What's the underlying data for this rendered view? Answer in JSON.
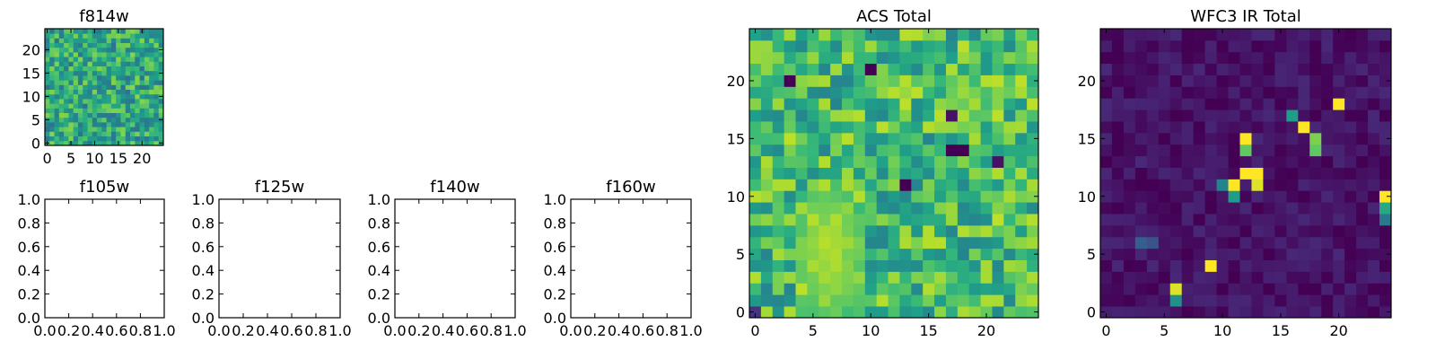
{
  "chart_data": [
    {
      "type": "heatmap",
      "title": "f814w",
      "xticks": [
        "0",
        "5",
        "10",
        "15",
        "20"
      ],
      "yticks": [
        "0",
        "5",
        "10",
        "15",
        "20"
      ],
      "xlim": [
        -0.5,
        24.5
      ],
      "ylim": [
        -0.5,
        24.5
      ],
      "grid": false,
      "colormap": "viridis",
      "matrix_size": [
        25,
        25
      ],
      "note_values": "pixel values not labeled; approximate normalized intensity (0-1) matching the ACS Total panel at reduced contrast"
    },
    {
      "type": "line",
      "title": "f105w",
      "xticks": [
        "0.0",
        "0.2",
        "0.4",
        "0.6",
        "0.8",
        "1.0"
      ],
      "yticks": [
        "0.0",
        "0.2",
        "0.4",
        "0.6",
        "0.8",
        "1.0"
      ],
      "xlim": [
        0,
        1
      ],
      "ylim": [
        0,
        1
      ],
      "series": []
    },
    {
      "type": "line",
      "title": "f125w",
      "xticks": [
        "0.0",
        "0.2",
        "0.4",
        "0.6",
        "0.8",
        "1.0"
      ],
      "yticks": [
        "0.0",
        "0.2",
        "0.4",
        "0.6",
        "0.8",
        "1.0"
      ],
      "xlim": [
        0,
        1
      ],
      "ylim": [
        0,
        1
      ],
      "series": []
    },
    {
      "type": "line",
      "title": "f140w",
      "xticks": [
        "0.0",
        "0.2",
        "0.4",
        "0.6",
        "0.8",
        "1.0"
      ],
      "yticks": [
        "0.0",
        "0.2",
        "0.4",
        "0.6",
        "0.8",
        "1.0"
      ],
      "xlim": [
        0,
        1
      ],
      "ylim": [
        0,
        1
      ],
      "series": []
    },
    {
      "type": "line",
      "title": "f160w",
      "xticks": [
        "0.0",
        "0.2",
        "0.4",
        "0.6",
        "0.8",
        "1.0"
      ],
      "yticks": [
        "0.0",
        "0.2",
        "0.4",
        "0.6",
        "0.8",
        "1.0"
      ],
      "xlim": [
        0,
        1
      ],
      "ylim": [
        0,
        1
      ],
      "series": []
    },
    {
      "type": "heatmap",
      "title": "ACS Total",
      "xticks": [
        "0",
        "5",
        "10",
        "15",
        "20"
      ],
      "yticks": [
        "0",
        "5",
        "10",
        "15",
        "20"
      ],
      "xlim": [
        -0.5,
        24.5
      ],
      "ylim": [
        -0.5,
        24.5
      ],
      "grid": false,
      "colormap": "viridis",
      "matrix_size": [
        25,
        25
      ],
      "background_level": 0.68,
      "features": [
        {
          "type": "bright_region",
          "x_range": [
            4,
            9
          ],
          "y_range": [
            0,
            10
          ],
          "value": 0.95
        },
        {
          "type": "dark_pixel",
          "x": 3,
          "y": 20,
          "value": 0.0
        },
        {
          "type": "dark_pixel",
          "x": 10,
          "y": 21,
          "value": 0.0
        },
        {
          "type": "dark_pixel",
          "x": 13,
          "y": 11,
          "value": 0.0
        },
        {
          "type": "dark_pixel",
          "x": 17,
          "y": 14,
          "value": 0.0
        },
        {
          "type": "dark_pixel",
          "x": 18,
          "y": 14,
          "value": 0.0
        },
        {
          "type": "dark_pixel",
          "x": 17,
          "y": 17,
          "value": 0.05
        },
        {
          "type": "dark_pixel",
          "x": 21,
          "y": 13,
          "value": 0.05
        },
        {
          "type": "dark_pixel",
          "x": 0,
          "y": 0,
          "value": 0.15
        }
      ]
    },
    {
      "type": "heatmap",
      "title": "WFC3 IR Total",
      "xticks": [
        "0",
        "5",
        "10",
        "15",
        "20"
      ],
      "yticks": [
        "0",
        "5",
        "10",
        "15",
        "20"
      ],
      "xlim": [
        -0.5,
        24.5
      ],
      "ylim": [
        -0.5,
        24.5
      ],
      "grid": false,
      "colormap": "viridis",
      "matrix_size": [
        25,
        25
      ],
      "background_level": 0.05,
      "features": [
        {
          "type": "bright_pixel",
          "x": 20,
          "y": 18,
          "value": 1.0
        },
        {
          "type": "bright_pixel",
          "x": 16,
          "y": 17,
          "value": 0.55
        },
        {
          "type": "bright_pixel",
          "x": 17,
          "y": 16,
          "value": 1.0
        },
        {
          "type": "bright_pixel",
          "x": 18,
          "y": 15,
          "value": 0.8
        },
        {
          "type": "bright_pixel",
          "x": 18,
          "y": 14,
          "value": 0.75
        },
        {
          "type": "bright_pixel",
          "x": 12,
          "y": 15,
          "value": 1.0
        },
        {
          "type": "bright_pixel",
          "x": 12,
          "y": 14,
          "value": 0.75
        },
        {
          "type": "bright_pixel",
          "x": 12,
          "y": 12,
          "value": 1.0
        },
        {
          "type": "bright_pixel",
          "x": 13,
          "y": 12,
          "value": 1.0
        },
        {
          "type": "bright_pixel",
          "x": 13,
          "y": 11,
          "value": 0.95
        },
        {
          "type": "bright_pixel",
          "x": 11,
          "y": 11,
          "value": 1.0
        },
        {
          "type": "bright_pixel",
          "x": 11,
          "y": 10,
          "value": 0.55
        },
        {
          "type": "bright_pixel",
          "x": 10,
          "y": 11,
          "value": 0.45
        },
        {
          "type": "bright_pixel",
          "x": 24,
          "y": 10,
          "value": 1.0
        },
        {
          "type": "bright_pixel",
          "x": 24,
          "y": 9,
          "value": 0.6
        },
        {
          "type": "bright_pixel",
          "x": 24,
          "y": 8,
          "value": 0.4
        },
        {
          "type": "bright_pixel",
          "x": 9,
          "y": 4,
          "value": 1.0
        },
        {
          "type": "bright_pixel",
          "x": 6,
          "y": 2,
          "value": 0.95
        },
        {
          "type": "bright_pixel",
          "x": 6,
          "y": 1,
          "value": 0.5
        },
        {
          "type": "bright_pixel",
          "x": 3,
          "y": 6,
          "value": 0.3
        },
        {
          "type": "bright_pixel",
          "x": 4,
          "y": 6,
          "value": 0.25
        }
      ]
    }
  ]
}
